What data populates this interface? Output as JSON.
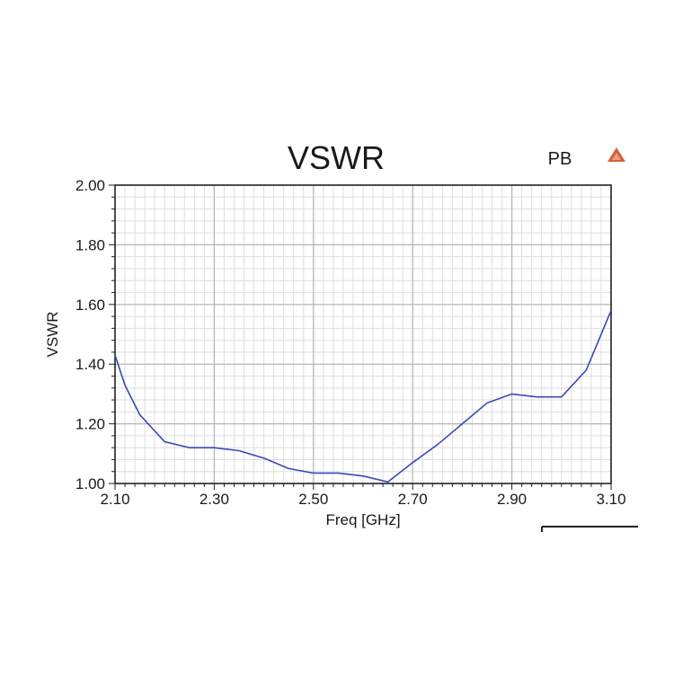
{
  "chart_data": {
    "type": "line",
    "title": "VSWR",
    "badge": "PB",
    "xlabel": "Freq [GHz]",
    "ylabel": "VSWR",
    "xlim": [
      2.1,
      3.1
    ],
    "ylim": [
      1.0,
      2.0
    ],
    "x_ticks": [
      "2.10",
      "2.30",
      "2.50",
      "2.70",
      "2.90",
      "3.10"
    ],
    "y_ticks": [
      "2.00",
      "1.80",
      "1.60",
      "1.40",
      "1.20",
      "1.00"
    ],
    "grid": true,
    "colors": {
      "line": "#3a48b8",
      "marker": "#d2603c"
    },
    "series": [
      {
        "x": [
          2.1,
          2.12,
          2.15,
          2.2,
          2.25,
          2.3,
          2.35,
          2.4,
          2.45,
          2.5,
          2.55,
          2.6,
          2.65,
          2.7,
          2.75,
          2.8,
          2.85,
          2.9,
          2.95,
          3.0,
          3.05,
          3.1
        ],
        "y": [
          1.43,
          1.33,
          1.23,
          1.14,
          1.12,
          1.12,
          1.11,
          1.085,
          1.05,
          1.035,
          1.035,
          1.025,
          1.005,
          1.07,
          1.13,
          1.2,
          1.27,
          1.3,
          1.29,
          1.29,
          1.38,
          1.58
        ]
      }
    ]
  }
}
